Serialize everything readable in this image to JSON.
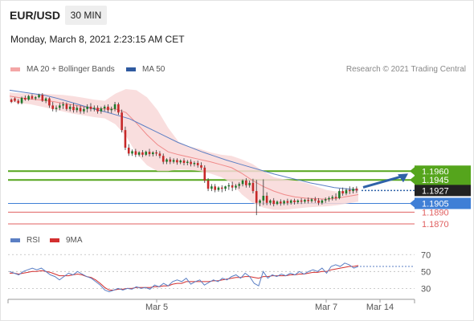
{
  "header": {
    "pair": "EUR/USD",
    "timeframe": "30 MIN",
    "datetime": "Monday, March 8, 2021 2:23:15 AM CET",
    "copyright": "Research © 2021 Trading Central"
  },
  "legend": {
    "ma20": "MA 20 + Bollinger Bands",
    "ma50": "MA 50",
    "rsi": "RSI",
    "rsi_ma": "9MA"
  },
  "colors": {
    "candle_up": "#1f7a2b",
    "candle_down": "#c62828",
    "ma20": "#f08a8a",
    "band_fill": "#f8d8d8",
    "ma50": "#5b7fc4",
    "rsi": "#5b7fc4",
    "rsi_ma": "#d32f2f",
    "resistance": "#55a51c",
    "support": "#3f7fd6",
    "support_red": "#e06060",
    "target_arrow": "#2f62a8"
  },
  "chart_data": {
    "type": "candlestick",
    "price_axis": {
      "range": [
        1.1855,
        1.2115
      ]
    },
    "time_axis": {
      "tick_labels": [
        "Mar 5",
        "Mar 7",
        "Mar 14"
      ]
    },
    "current_price": 1.1927,
    "forecast_target": 1.196,
    "levels": [
      {
        "label": "1.1960",
        "value": 1.196,
        "kind": "resistance"
      },
      {
        "label": "1.1945",
        "value": 1.1945,
        "kind": "resistance"
      },
      {
        "label": "1.1927",
        "value": 1.1927,
        "kind": "current"
      },
      {
        "label": "1.1905",
        "value": 1.1905,
        "kind": "support"
      },
      {
        "label": "1.1890",
        "value": 1.189,
        "kind": "support"
      },
      {
        "label": "1.1870",
        "value": 1.187,
        "kind": "support"
      }
    ],
    "candles": [
      [
        1.2082,
        1.2084,
        1.2078,
        1.2076
      ],
      [
        1.2084,
        1.2086,
        1.208,
        1.2078
      ],
      [
        1.208,
        1.2083,
        1.2076,
        1.2074
      ],
      [
        1.2076,
        1.2087,
        1.2085,
        1.2074
      ],
      [
        1.2085,
        1.2089,
        1.2082,
        1.208
      ],
      [
        1.2082,
        1.209,
        1.2088,
        1.208
      ],
      [
        1.2088,
        1.2091,
        1.2084,
        1.2082
      ],
      [
        1.2084,
        1.2088,
        1.2086,
        1.2081
      ],
      [
        1.2086,
        1.2092,
        1.209,
        1.2084
      ],
      [
        1.209,
        1.2093,
        1.208,
        1.2078
      ],
      [
        1.208,
        1.2086,
        1.2084,
        1.2076
      ],
      [
        1.2084,
        1.2086,
        1.2072,
        1.2068
      ],
      [
        1.2072,
        1.2078,
        1.2066,
        1.2062
      ],
      [
        1.2066,
        1.2072,
        1.2068,
        1.2061
      ],
      [
        1.2068,
        1.2076,
        1.2072,
        1.2064
      ],
      [
        1.2072,
        1.2078,
        1.2074,
        1.2066
      ],
      [
        1.2074,
        1.2077,
        1.2066,
        1.2063
      ],
      [
        1.2066,
        1.2074,
        1.207,
        1.2062
      ],
      [
        1.207,
        1.2076,
        1.2064,
        1.206
      ],
      [
        1.2064,
        1.2072,
        1.2068,
        1.206
      ],
      [
        1.2068,
        1.2072,
        1.2062,
        1.2058
      ],
      [
        1.2062,
        1.207,
        1.2066,
        1.2058
      ],
      [
        1.2066,
        1.2074,
        1.207,
        1.206
      ],
      [
        1.207,
        1.2076,
        1.2066,
        1.2062
      ],
      [
        1.2066,
        1.2072,
        1.2068,
        1.2062
      ],
      [
        1.2068,
        1.2072,
        1.2062,
        1.2058
      ],
      [
        1.2062,
        1.207,
        1.2067,
        1.2058
      ],
      [
        1.2067,
        1.2073,
        1.207,
        1.2062
      ],
      [
        1.207,
        1.2074,
        1.2064,
        1.206
      ],
      [
        1.2064,
        1.207,
        1.2066,
        1.2059
      ],
      [
        1.2066,
        1.2078,
        1.2074,
        1.2062
      ],
      [
        1.2074,
        1.2077,
        1.206,
        1.2056
      ],
      [
        1.206,
        1.2065,
        1.203,
        1.2026
      ],
      [
        1.203,
        1.2036,
        1.2,
        1.1996
      ],
      [
        1.2,
        1.2006,
        1.199,
        1.1986
      ],
      [
        1.199,
        1.1997,
        1.1994,
        1.1986
      ],
      [
        1.1994,
        1.1998,
        1.1988,
        1.1984
      ],
      [
        1.1988,
        1.1994,
        1.1992,
        1.1985
      ],
      [
        1.1992,
        1.1996,
        1.1988,
        1.1984
      ],
      [
        1.1988,
        1.1995,
        1.1993,
        1.1986
      ],
      [
        1.1993,
        1.1998,
        1.1989,
        1.1985
      ],
      [
        1.1989,
        1.1994,
        1.1992,
        1.1985
      ],
      [
        1.1992,
        1.1996,
        1.199,
        1.1986
      ],
      [
        1.199,
        1.1994,
        1.1986,
        1.1982
      ],
      [
        1.1986,
        1.199,
        1.1976,
        1.1972
      ],
      [
        1.1976,
        1.1982,
        1.198,
        1.1972
      ],
      [
        1.198,
        1.1984,
        1.1976,
        1.1972
      ],
      [
        1.1976,
        1.1982,
        1.1979,
        1.1973
      ],
      [
        1.1979,
        1.1982,
        1.1975,
        1.1971
      ],
      [
        1.1975,
        1.198,
        1.1978,
        1.1972
      ],
      [
        1.1978,
        1.1982,
        1.1974,
        1.197
      ],
      [
        1.1974,
        1.1979,
        1.1976,
        1.197
      ],
      [
        1.1976,
        1.198,
        1.1972,
        1.1968
      ],
      [
        1.1972,
        1.1977,
        1.1974,
        1.1968
      ],
      [
        1.1974,
        1.1978,
        1.197,
        1.1966
      ],
      [
        1.197,
        1.1975,
        1.1966,
        1.1962
      ],
      [
        1.1966,
        1.197,
        1.1944,
        1.194
      ],
      [
        1.1944,
        1.1948,
        1.193,
        1.1926
      ],
      [
        1.193,
        1.1938,
        1.1934,
        1.1926
      ],
      [
        1.1934,
        1.1938,
        1.1928,
        1.1924
      ],
      [
        1.1928,
        1.1934,
        1.1932,
        1.1925
      ],
      [
        1.1932,
        1.1936,
        1.193,
        1.1924
      ],
      [
        1.193,
        1.1935,
        1.1934,
        1.1926
      ],
      [
        1.1934,
        1.194,
        1.1936,
        1.1928
      ],
      [
        1.1936,
        1.1942,
        1.1932,
        1.1926
      ],
      [
        1.1932,
        1.1938,
        1.1935,
        1.1928
      ],
      [
        1.1935,
        1.1941,
        1.1938,
        1.193
      ],
      [
        1.1938,
        1.1946,
        1.1944,
        1.1934
      ],
      [
        1.1944,
        1.1948,
        1.1936,
        1.1932
      ],
      [
        1.1936,
        1.1944,
        1.194,
        1.1932
      ],
      [
        1.194,
        1.1947,
        1.1926,
        1.1922
      ],
      [
        1.1926,
        1.1945,
        1.1906,
        1.1885
      ],
      [
        1.1906,
        1.1912,
        1.191,
        1.19
      ],
      [
        1.191,
        1.1946,
        1.1918,
        1.1902
      ],
      [
        1.1918,
        1.1924,
        1.1906,
        1.1902
      ],
      [
        1.1906,
        1.1912,
        1.191,
        1.1902
      ],
      [
        1.191,
        1.1914,
        1.1904,
        1.19
      ],
      [
        1.1904,
        1.191,
        1.1908,
        1.1902
      ],
      [
        1.1908,
        1.1912,
        1.1905,
        1.1901
      ],
      [
        1.1905,
        1.1911,
        1.1909,
        1.1902
      ],
      [
        1.1909,
        1.1913,
        1.1906,
        1.1902
      ],
      [
        1.1906,
        1.1912,
        1.191,
        1.1903
      ],
      [
        1.191,
        1.1913,
        1.1907,
        1.1903
      ],
      [
        1.1907,
        1.1912,
        1.191,
        1.1904
      ],
      [
        1.191,
        1.1914,
        1.1908,
        1.1904
      ],
      [
        1.1908,
        1.1913,
        1.1911,
        1.1905
      ],
      [
        1.1911,
        1.1915,
        1.1909,
        1.1905
      ],
      [
        1.1909,
        1.1914,
        1.1912,
        1.1906
      ],
      [
        1.1912,
        1.1916,
        1.191,
        1.1906
      ],
      [
        1.191,
        1.1914,
        1.1906,
        1.1902
      ],
      [
        1.1906,
        1.1912,
        1.191,
        1.1903
      ],
      [
        1.191,
        1.1915,
        1.1912,
        1.1906
      ],
      [
        1.1912,
        1.1917,
        1.1914,
        1.1908
      ],
      [
        1.1914,
        1.1919,
        1.1916,
        1.191
      ],
      [
        1.1916,
        1.1922,
        1.1914,
        1.191
      ],
      [
        1.1914,
        1.193,
        1.1926,
        1.1912
      ],
      [
        1.1926,
        1.1932,
        1.1922,
        1.1918
      ],
      [
        1.1922,
        1.1931,
        1.1928,
        1.1919
      ],
      [
        1.1928,
        1.1934,
        1.1926,
        1.1921
      ],
      [
        1.1926,
        1.1933,
        1.193,
        1.1922
      ],
      [
        1.193,
        1.1934,
        1.1927,
        1.1923
      ]
    ],
    "ma50": [
      1.2098,
      1.2095,
      1.2092,
      1.2089,
      1.2084,
      1.2078,
      1.2072,
      1.2066,
      1.2061,
      1.2055,
      1.2049,
      1.2039,
      1.2029,
      1.2019,
      1.2009,
      1.2001,
      1.1993,
      1.1986,
      1.1979,
      1.1973,
      1.1967,
      1.1961,
      1.1955,
      1.195,
      1.1945,
      1.194,
      1.1936,
      1.1932,
      1.193,
      1.1928
    ],
    "ma20": [
      1.2088,
      1.2085,
      1.2083,
      1.2081,
      1.2079,
      1.2076,
      1.2073,
      1.207,
      1.2067,
      1.2066,
      1.2066,
      1.206,
      1.2042,
      1.2022,
      1.2005,
      1.1993,
      1.1988,
      1.1984,
      1.198,
      1.1976,
      1.1971,
      1.1966,
      1.1956,
      1.1944,
      1.1934,
      1.1926,
      1.192,
      1.1916,
      1.1914,
      1.1913,
      1.1912,
      1.1914,
      1.1917,
      1.192
    ],
    "bb_upper": [
      1.2094,
      1.2093,
      1.2092,
      1.2092,
      1.2091,
      1.209,
      1.2088,
      1.2085,
      1.2082,
      1.208,
      1.2092,
      1.21,
      1.2098,
      1.2086,
      1.2064,
      1.2034,
      1.201,
      1.2002,
      1.1998,
      1.1992,
      1.1988,
      1.1986,
      1.198,
      1.1972,
      1.196,
      1.195,
      1.1946,
      1.1944,
      1.194,
      1.1934,
      1.1928,
      1.1925,
      1.1928,
      1.1932
    ],
    "bb_lower": [
      1.2078,
      1.2076,
      1.2074,
      1.207,
      1.2066,
      1.2062,
      1.2058,
      1.2055,
      1.2052,
      1.205,
      1.204,
      1.202,
      1.199,
      1.197,
      1.196,
      1.196,
      1.1963,
      1.1962,
      1.196,
      1.1956,
      1.195,
      1.194,
      1.192,
      1.1906,
      1.1898,
      1.1894,
      1.1894,
      1.1896,
      1.1898,
      1.1899,
      1.19,
      1.1902,
      1.1905,
      1.1908
    ],
    "rsi": {
      "ticks": [
        70,
        50,
        30
      ],
      "range": [
        18,
        75
      ],
      "rsi": [
        50,
        48,
        46,
        50,
        52,
        54,
        52,
        54,
        50,
        46,
        44,
        40,
        44,
        48,
        46,
        50,
        47,
        44,
        42,
        38,
        34,
        28,
        26,
        28,
        30,
        28,
        30,
        29,
        32,
        30,
        31,
        29,
        34,
        32,
        36,
        33,
        38,
        40,
        38,
        42,
        35,
        38,
        40,
        34,
        37,
        40,
        38,
        42,
        40,
        44,
        46,
        42,
        48,
        44,
        36,
        33,
        50,
        42,
        46,
        44,
        47,
        45,
        48,
        46,
        50,
        47,
        50,
        52,
        50,
        54,
        48,
        56,
        58,
        56,
        60,
        58,
        54,
        56
      ],
      "ma": [
        48,
        48,
        47,
        48,
        49,
        50,
        50,
        51,
        50,
        49,
        47,
        45,
        45,
        45,
        46,
        47,
        46,
        44,
        43,
        40,
        36,
        31,
        28,
        28,
        29,
        29,
        30,
        30,
        31,
        31,
        31,
        31,
        32,
        32,
        33,
        33,
        35,
        36,
        36,
        38,
        38,
        38,
        38,
        38,
        38,
        39,
        39,
        40,
        41,
        42,
        43,
        43,
        44,
        44,
        43,
        42,
        44,
        44,
        45,
        45,
        45,
        45,
        46,
        46,
        47,
        47,
        48,
        49,
        49,
        50,
        50,
        52,
        53,
        54,
        55,
        56,
        56,
        57
      ]
    }
  }
}
